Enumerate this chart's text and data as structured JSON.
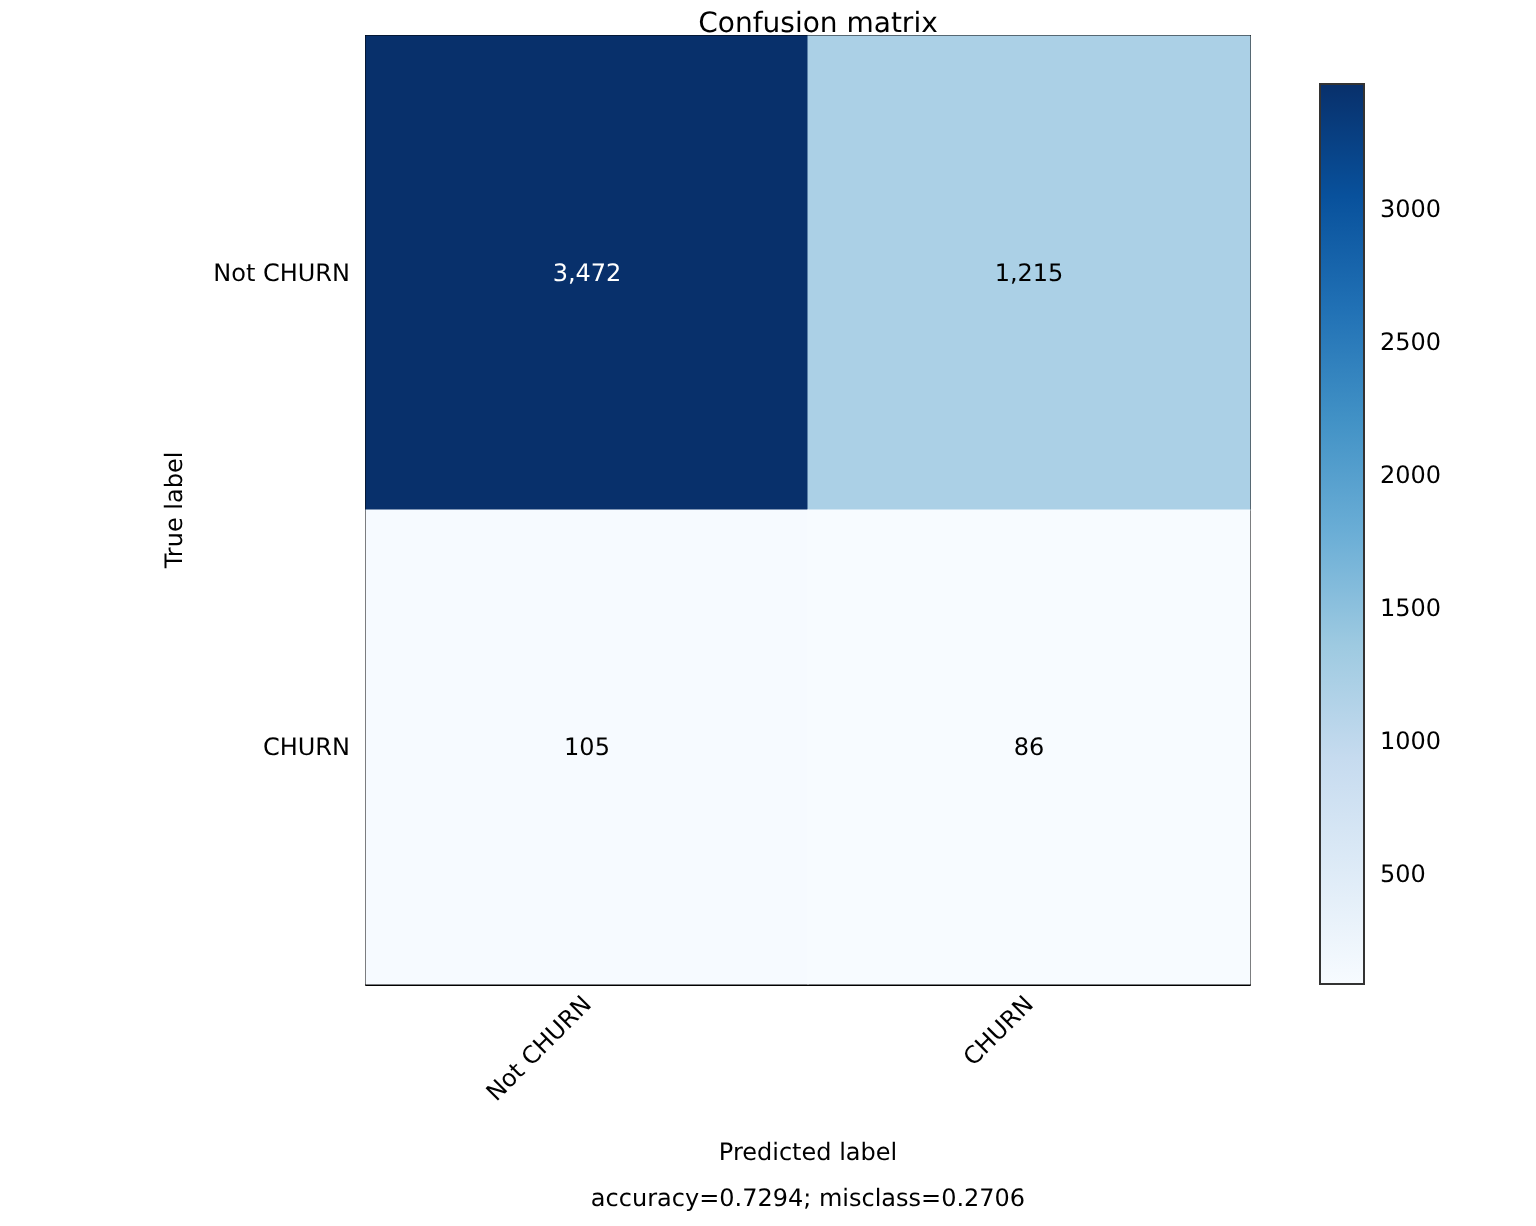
{
  "chart_data": {
    "type": "heatmap",
    "title": "Confusion matrix",
    "xlabel": "Predicted label",
    "ylabel": "True label",
    "annotations": [
      "accuracy=0.7294; misclass=0.2706"
    ],
    "categories": [
      "Not CHURN",
      "CHURN"
    ],
    "y_categories": [
      "Not CHURN",
      "CHURN"
    ],
    "cells": [
      [
        3472,
        1215
      ],
      [
        105,
        86
      ]
    ],
    "cell_labels": [
      [
        "3,472",
        "1,215"
      ],
      [
        "105",
        "86"
      ]
    ],
    "clim": [
      86,
      3472
    ],
    "cticks": [
      500,
      1000,
      1500,
      2000,
      2500,
      3000
    ]
  }
}
